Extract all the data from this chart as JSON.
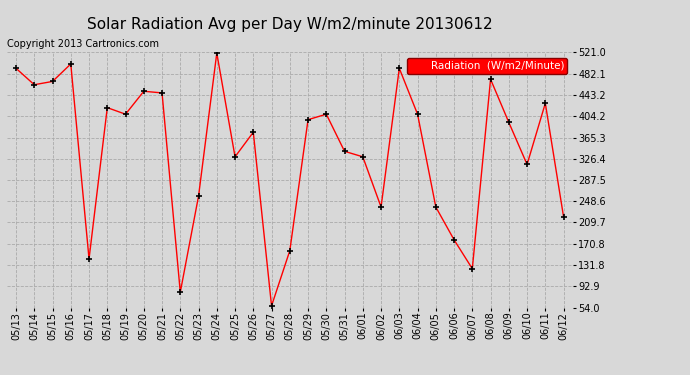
{
  "title": "Solar Radiation Avg per Day W/m2/minute 20130612",
  "copyright": "Copyright 2013 Cartronics.com",
  "legend_label": "Radiation  (W/m2/Minute)",
  "dates": [
    "05/13",
    "05/14",
    "05/15",
    "05/16",
    "05/17",
    "05/18",
    "05/19",
    "05/20",
    "05/21",
    "05/22",
    "05/23",
    "05/24",
    "05/25",
    "05/26",
    "05/27",
    "05/28",
    "05/29",
    "05/30",
    "05/31",
    "06/01",
    "06/02",
    "06/03",
    "06/04",
    "06/05",
    "06/06",
    "06/07",
    "06/08",
    "06/09",
    "06/10",
    "06/11",
    "06/12"
  ],
  "values": [
    492,
    462,
    468,
    500,
    143,
    420,
    408,
    450,
    447,
    82,
    258,
    520,
    330,
    375,
    57,
    158,
    398,
    408,
    340,
    330,
    238,
    492,
    408,
    238,
    178,
    125,
    472,
    393,
    316,
    428,
    220
  ],
  "line_color": "red",
  "marker_color": "black",
  "bg_color": "#d8d8d8",
  "plot_bg": "#d8d8d8",
  "grid_color": "#aaaaaa",
  "ylim": [
    54.0,
    521.0
  ],
  "yticks": [
    54.0,
    92.9,
    131.8,
    170.8,
    209.7,
    248.6,
    287.5,
    326.4,
    365.3,
    404.2,
    443.2,
    482.1,
    521.0
  ],
  "title_fontsize": 11,
  "copyright_fontsize": 7,
  "legend_fontsize": 7.5,
  "tick_fontsize": 7
}
